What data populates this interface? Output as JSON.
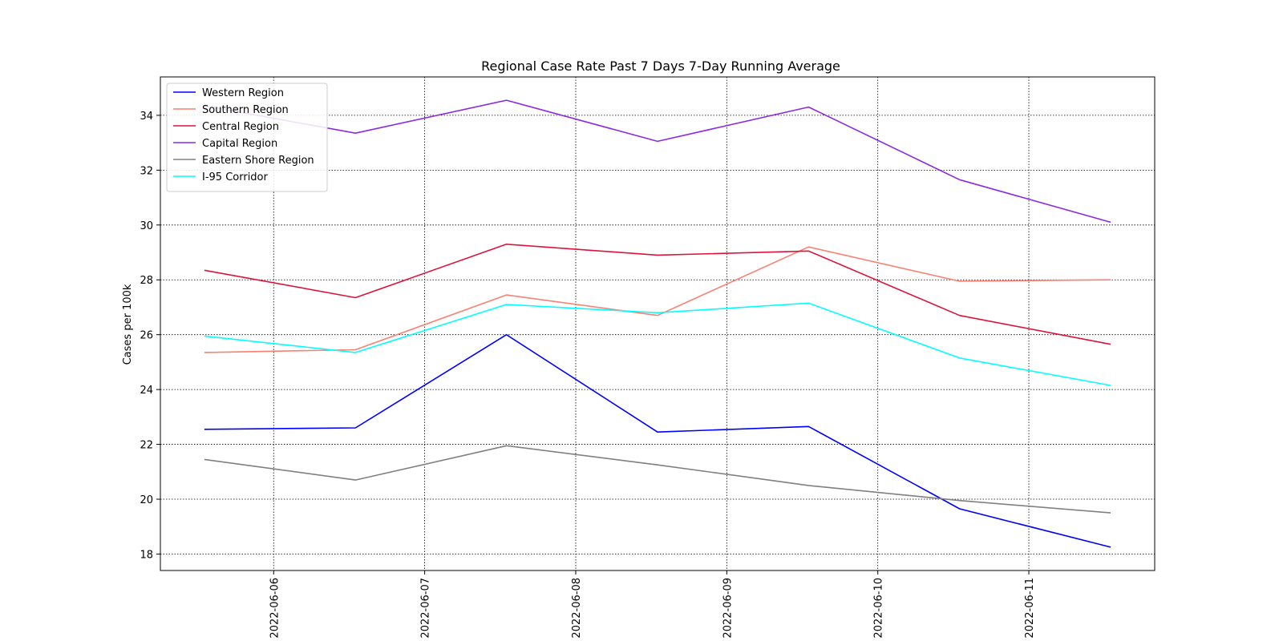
{
  "chart_data": {
    "type": "line",
    "title": "Regional Case Rate  Past 7 Days 7-Day Running Average",
    "xlabel": "",
    "ylabel": "Cases per 100k",
    "x": [
      "2022-06-05 13:00",
      "2022-06-06 13:00",
      "2022-06-07 13:00",
      "2022-06-08 13:00",
      "2022-06-09 13:00",
      "2022-06-10 13:00",
      "2022-06-11 13:00"
    ],
    "xlim": [
      "2022-06-05 06:00",
      "2022-06-11 20:00"
    ],
    "ylim": [
      17.4,
      35.4
    ],
    "x_ticks": [
      "2022-06-06",
      "2022-06-07",
      "2022-06-08",
      "2022-06-09",
      "2022-06-10",
      "2022-06-11"
    ],
    "y_ticks": [
      18,
      20,
      22,
      24,
      26,
      28,
      30,
      32,
      34
    ],
    "grid": true,
    "legend_position": "upper-left",
    "series": [
      {
        "name": "Western Region",
        "color": "#0000ff",
        "values": [
          22.55,
          22.6,
          26.0,
          22.45,
          22.65,
          19.65,
          18.25
        ]
      },
      {
        "name": "Southern Region",
        "color": "#fa8072",
        "values": [
          25.35,
          25.45,
          27.45,
          26.7,
          29.2,
          27.95,
          28.0
        ]
      },
      {
        "name": "Central Region",
        "color": "#dc143c",
        "values": [
          28.35,
          27.35,
          29.3,
          28.9,
          29.05,
          26.7,
          25.65
        ]
      },
      {
        "name": "Capital Region",
        "color": "#8a2be2",
        "values": [
          34.35,
          33.35,
          34.55,
          33.05,
          34.3,
          31.65,
          30.1
        ]
      },
      {
        "name": "Eastern Shore Region",
        "color": "#808080",
        "values": [
          21.45,
          20.7,
          21.95,
          21.25,
          20.5,
          19.95,
          19.5
        ]
      },
      {
        "name": "I-95 Corridor",
        "color": "#00ffff",
        "values": [
          25.95,
          25.35,
          27.1,
          26.8,
          27.15,
          25.15,
          24.15
        ]
      }
    ]
  }
}
